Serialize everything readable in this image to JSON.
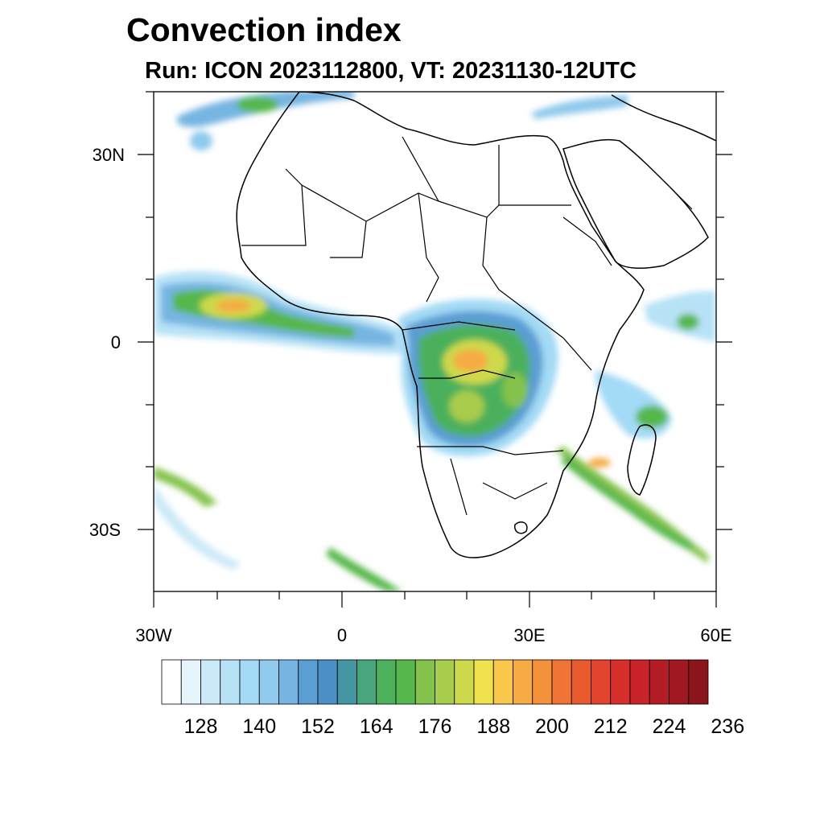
{
  "header": {
    "title": "Convection index",
    "subtitle": "Run: ICON 2023112800,  VT: 20231130-12UTC"
  },
  "map": {
    "region": "Africa",
    "lon_range": [
      -30,
      60
    ],
    "lat_range": [
      -40,
      40
    ],
    "lat_labels": [
      "30N",
      "0",
      "30S"
    ],
    "lon_labels": [
      "30W",
      "0",
      "30E",
      "60E"
    ]
  },
  "colorbar": {
    "colors": [
      "#ffffff",
      "#e6f4fc",
      "#cce9f8",
      "#b7e2f6",
      "#a3daf5",
      "#8fc9ec",
      "#76b5e2",
      "#5b9ed3",
      "#4a8fc5",
      "#4496a3",
      "#47a67b",
      "#4cb05c",
      "#56b74c",
      "#84c24c",
      "#a8cc4c",
      "#cdd94c",
      "#f0e24e",
      "#f8c74c",
      "#f6ab45",
      "#f4923c",
      "#ef7435",
      "#e95a2f",
      "#e3442d",
      "#d92f2c",
      "#c8242a",
      "#b51d26",
      "#a11822",
      "#8c141d"
    ],
    "tick_labels": [
      "128",
      "140",
      "152",
      "164",
      "176",
      "188",
      "200",
      "212",
      "224",
      "236"
    ]
  }
}
